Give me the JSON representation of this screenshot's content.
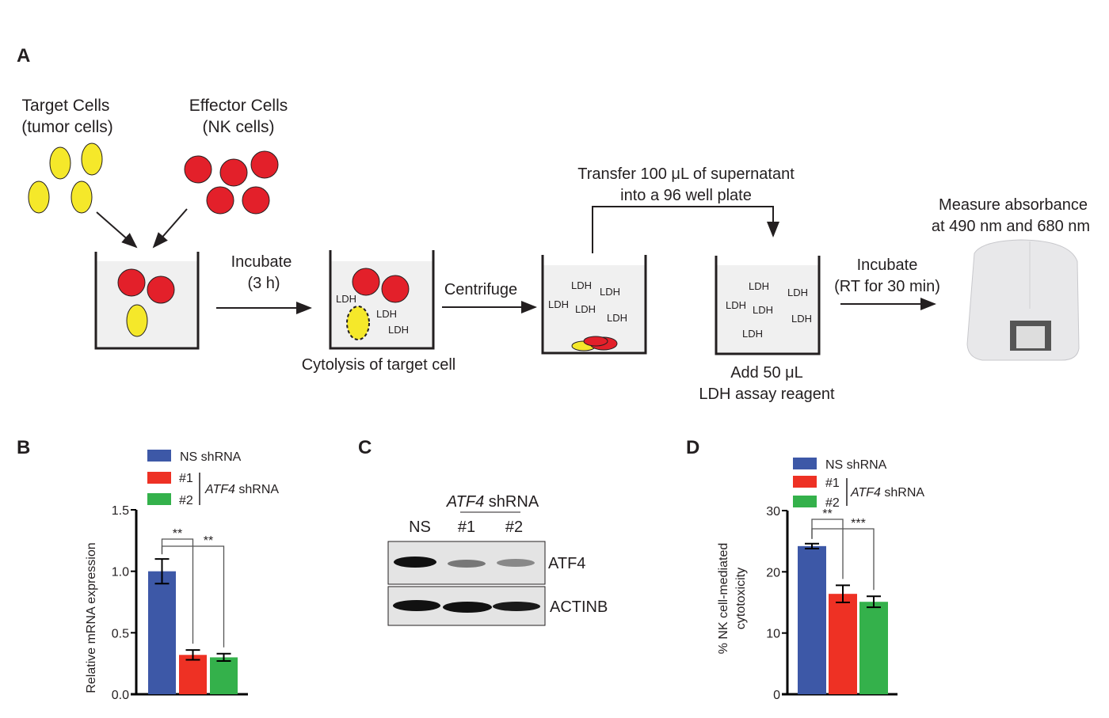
{
  "panels": {
    "a": "A",
    "b": "B",
    "c": "C",
    "d": "D"
  },
  "diagram": {
    "target_cells": [
      "Target Cells",
      "(tumor cells)"
    ],
    "effector_cells": [
      "Effector Cells",
      "(NK cells)"
    ],
    "incubate1": [
      "Incubate",
      "(3 h)"
    ],
    "cytolysis": "Cytolysis of target cell",
    "centrifuge": "Centrifuge",
    "transfer": [
      "Transfer 100 μL of supernatant",
      "into a 96 well plate"
    ],
    "add_reagent": [
      "Add 50 μL",
      "LDH assay reagent"
    ],
    "incubate2": [
      "Incubate",
      "(RT for 30 min)"
    ],
    "measure": [
      "Measure absorbance",
      "at 490 nm and 680 nm"
    ],
    "ldh": "LDH",
    "colors": {
      "target": "#f5e82a",
      "effector": "#e3202a",
      "well": "#f0f0f0"
    }
  },
  "blot": {
    "title_gene": "ATF4",
    "title_rest": " shRNA",
    "lanes": [
      "NS",
      "#1",
      "#2"
    ],
    "rows": [
      "ATF4",
      "ACTINB"
    ]
  },
  "legend": {
    "ns": "NS shRNA",
    "s1": "#1",
    "s2": "#2",
    "gene": "ATF4",
    "rest": " shRNA"
  },
  "chart_data": [
    {
      "type": "bar",
      "panel": "B",
      "categories": [
        "NS shRNA",
        "ATF4 shRNA #1",
        "ATF4 shRNA #2"
      ],
      "values": [
        1.0,
        0.32,
        0.3
      ],
      "errors": [
        0.1,
        0.04,
        0.03
      ],
      "colors": [
        "#3d58a7",
        "#ee3124",
        "#34b14b"
      ],
      "ylabel": "Relative mRNA expression",
      "ylim": [
        0,
        1.5
      ],
      "yticks": [
        "0.0",
        "0.5",
        "1.0",
        "1.5"
      ],
      "ytick_values": [
        0,
        0.5,
        1.0,
        1.5
      ],
      "significance": [
        "**",
        "**"
      ]
    },
    {
      "type": "bar",
      "panel": "D",
      "categories": [
        "NS shRNA",
        "ATF4 shRNA #1",
        "ATF4 shRNA #2"
      ],
      "values": [
        24.2,
        16.4,
        15.1
      ],
      "errors": [
        0.4,
        1.4,
        0.9
      ],
      "colors": [
        "#3d58a7",
        "#ee3124",
        "#34b14b"
      ],
      "ylabel": [
        "% NK cell-mediated",
        "cytotoxicity"
      ],
      "ylim": [
        0,
        30
      ],
      "yticks": [
        "0",
        "10",
        "20",
        "30"
      ],
      "ytick_values": [
        0,
        10,
        20,
        30
      ],
      "significance": [
        "**",
        "***"
      ]
    }
  ]
}
